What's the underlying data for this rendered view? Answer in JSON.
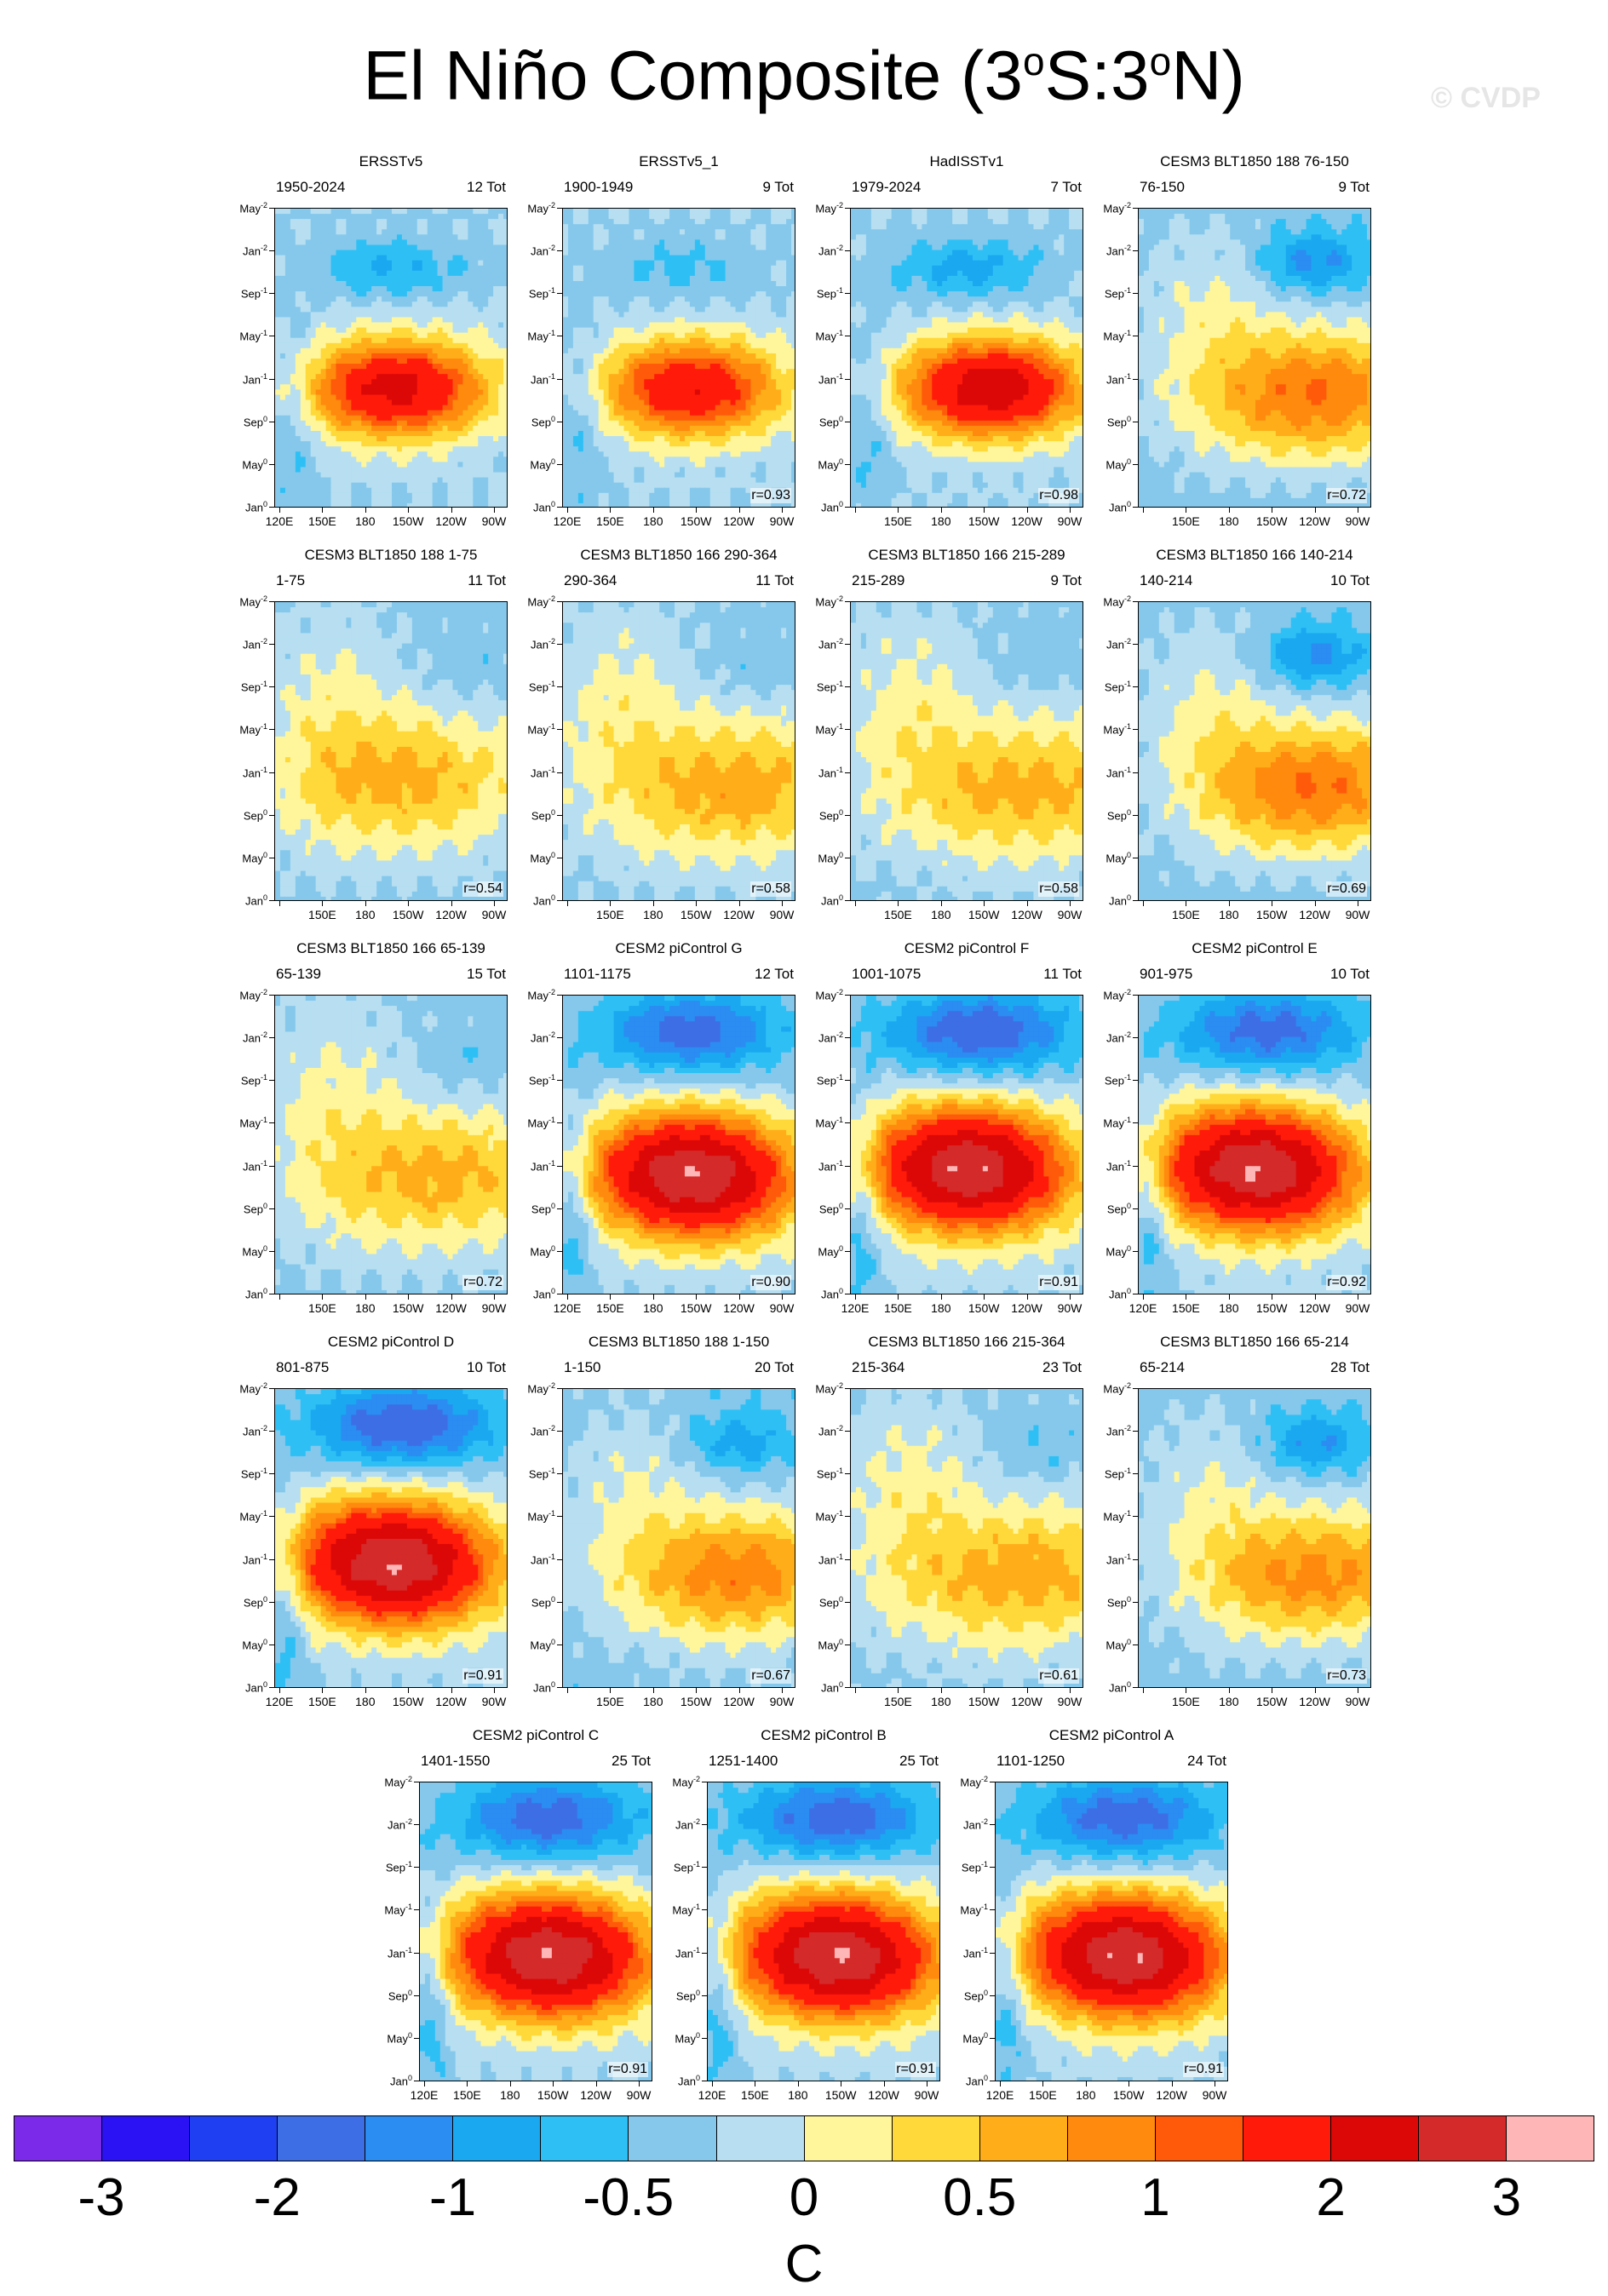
{
  "title": {
    "prefix": "El Niño Composite (3",
    "sup1": "o",
    "mid": "S:3",
    "sup2": "o",
    "suffix": "N)"
  },
  "watermark": "© CVDP",
  "chart_data": {
    "type": "heatmap",
    "title": "El Niño Composite (3°S:3°N)",
    "units": "C",
    "y_ticks": [
      {
        "base": "May",
        "sup": "-2"
      },
      {
        "base": "Jan",
        "sup": "-2"
      },
      {
        "base": "Sep",
        "sup": "-1"
      },
      {
        "base": "May",
        "sup": "-1"
      },
      {
        "base": "Jan",
        "sup": "-1"
      },
      {
        "base": "Sep",
        "sup": "0"
      },
      {
        "base": "May",
        "sup": "0"
      },
      {
        "base": "Jan",
        "sup": "0"
      }
    ],
    "x_ticks": [
      "120E",
      "150E",
      "180",
      "150W",
      "120W",
      "90W"
    ],
    "colorbar": {
      "colors": [
        "#7b2aea",
        "#2a12f5",
        "#1f3ff2",
        "#3d6ee6",
        "#2b8cf2",
        "#1aa8f0",
        "#2ec0f5",
        "#86c8ec",
        "#b7dff1",
        "#fff69c",
        "#ffd93a",
        "#ffae1a",
        "#ff8a0d",
        "#ff5a0a",
        "#ff1a0a",
        "#dc0808",
        "#d42a2a",
        "#ffb6b6"
      ],
      "labels": [
        "-3",
        "-2",
        "-1",
        "-0.5",
        "0",
        "0.5",
        "1",
        "2",
        "3"
      ]
    },
    "panels": [
      {
        "title": "ERSSTv5",
        "period": "1950-2024",
        "count": "12 Tot",
        "r": "",
        "xlabels": "all",
        "warm": 0.92,
        "cool": 0.45,
        "core_x": 0.52,
        "core_y": 0.6,
        "profile": "obs"
      },
      {
        "title": "ERSSTv5_1",
        "period": "1900-1949",
        "count": "9 Tot",
        "r": "r=0.93",
        "xlabels": "all",
        "warm": 0.82,
        "cool": 0.3,
        "core_x": 0.55,
        "core_y": 0.6,
        "profile": "obs"
      },
      {
        "title": "HadISSTv1",
        "period": "1979-2024",
        "count": "7 Tot",
        "r": "r=0.98",
        "xlabels": "skip",
        "warm": 1.0,
        "cool": 0.55,
        "core_x": 0.6,
        "core_y": 0.6,
        "profile": "obs"
      },
      {
        "title": "CESM3 BLT1850 188 76-150",
        "period": "76-150",
        "count": "9 Tot",
        "r": "r=0.72",
        "xlabels": "skip",
        "warm": 0.7,
        "cool": 0.55,
        "core_x": 0.78,
        "core_y": 0.62,
        "profile": "model"
      },
      {
        "title": "CESM3 BLT1850 188 1-75",
        "period": "1-75",
        "count": "11 Tot",
        "r": "r=0.54",
        "xlabels": "skip",
        "warm": 0.55,
        "cool": 0.2,
        "core_x": 0.6,
        "core_y": 0.6,
        "profile": "weak"
      },
      {
        "title": "CESM3 BLT1850 166 290-364",
        "period": "290-364",
        "count": "11 Tot",
        "r": "r=0.58",
        "xlabels": "skip",
        "warm": 0.62,
        "cool": 0.2,
        "core_x": 0.78,
        "core_y": 0.62,
        "profile": "weak"
      },
      {
        "title": "CESM3 BLT1850 166 215-289",
        "period": "215-289",
        "count": "9 Tot",
        "r": "r=0.58",
        "xlabels": "skip",
        "warm": 0.6,
        "cool": 0.2,
        "core_x": 0.78,
        "core_y": 0.62,
        "profile": "weak"
      },
      {
        "title": "CESM3 BLT1850 166 140-214",
        "period": "140-214",
        "count": "10 Tot",
        "r": "r=0.69",
        "xlabels": "skip",
        "warm": 0.7,
        "cool": 0.55,
        "core_x": 0.78,
        "core_y": 0.62,
        "profile": "model"
      },
      {
        "title": "CESM3 BLT1850 166 65-139",
        "period": "65-139",
        "count": "15 Tot",
        "r": "r=0.72",
        "xlabels": "skip",
        "warm": 0.58,
        "cool": 0.25,
        "core_x": 0.75,
        "core_y": 0.61,
        "profile": "weak"
      },
      {
        "title": "CESM2 piControl G",
        "period": "1101-1175",
        "count": "12 Tot",
        "r": "r=0.90",
        "xlabels": "all",
        "warm": 1.0,
        "cool": 0.72,
        "core_x": 0.55,
        "core_y": 0.6,
        "profile": "strong"
      },
      {
        "title": "CESM2 piControl F",
        "period": "1001-1075",
        "count": "11 Tot",
        "r": "r=0.91",
        "xlabels": "all",
        "warm": 1.0,
        "cool": 0.8,
        "core_x": 0.5,
        "core_y": 0.58,
        "profile": "strong"
      },
      {
        "title": "CESM2 piControl E",
        "period": "901-975",
        "count": "10 Tot",
        "r": "r=0.92",
        "xlabels": "all",
        "warm": 1.0,
        "cool": 0.72,
        "core_x": 0.5,
        "core_y": 0.58,
        "profile": "strong"
      },
      {
        "title": "CESM2 piControl D",
        "period": "801-875",
        "count": "10 Tot",
        "r": "r=0.91",
        "xlabels": "all",
        "warm": 1.0,
        "cool": 0.8,
        "core_x": 0.5,
        "core_y": 0.58,
        "profile": "strong"
      },
      {
        "title": "CESM3 BLT1850 188 1-150",
        "period": "1-150",
        "count": "20 Tot",
        "r": "r=0.67",
        "xlabels": "skip",
        "warm": 0.65,
        "cool": 0.4,
        "core_x": 0.78,
        "core_y": 0.62,
        "profile": "model"
      },
      {
        "title": "CESM3 BLT1850 166 215-364",
        "period": "215-364",
        "count": "23 Tot",
        "r": "r=0.61",
        "xlabels": "skip",
        "warm": 0.62,
        "cool": 0.3,
        "core_x": 0.78,
        "core_y": 0.62,
        "profile": "weak"
      },
      {
        "title": "CESM3 BLT1850 166 65-214",
        "period": "65-214",
        "count": "28 Tot",
        "r": "r=0.73",
        "xlabels": "skip",
        "warm": 0.62,
        "cool": 0.5,
        "core_x": 0.78,
        "core_y": 0.62,
        "profile": "model"
      },
      {
        "title": "CESM2 piControl C",
        "period": "1401-1550",
        "count": "25 Tot",
        "r": "r=0.91",
        "xlabels": "all",
        "warm": 1.0,
        "cool": 0.75,
        "core_x": 0.55,
        "core_y": 0.58,
        "profile": "strong"
      },
      {
        "title": "CESM2 piControl B",
        "period": "1251-1400",
        "count": "25 Tot",
        "r": "r=0.91",
        "xlabels": "all",
        "warm": 1.0,
        "cool": 0.75,
        "core_x": 0.55,
        "core_y": 0.58,
        "profile": "strong"
      },
      {
        "title": "CESM2 piControl A",
        "period": "1101-1250",
        "count": "24 Tot",
        "r": "r=0.91",
        "xlabels": "all",
        "warm": 1.0,
        "cool": 0.75,
        "core_x": 0.55,
        "core_y": 0.58,
        "profile": "strong"
      }
    ]
  }
}
